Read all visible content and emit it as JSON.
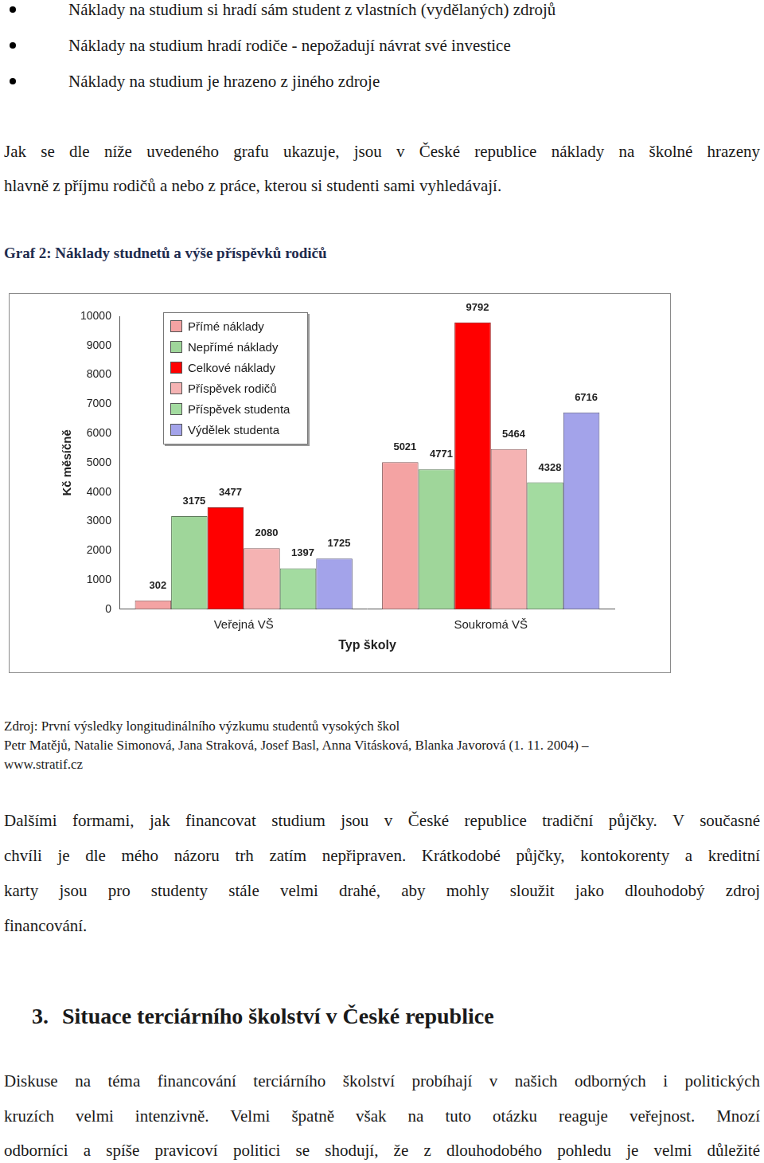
{
  "page": {
    "bullets": [
      "Náklady na studium si hradí sám student z vlastních (vydělaných) zdrojů",
      "Náklady na studium hradí rodiče - nepožadují návrat své investice",
      "Náklady na studium je hrazeno z jiného zdroje"
    ],
    "intro": [
      "Jak se dle níže uvedeného grafu ukazuje, jsou v České republice náklady na školné hrazeny",
      "hlavně z příjmu rodičů a  nebo z práce, kterou si studenti sami vyhledávají."
    ],
    "figure_caption": "Graf 2: Náklady studnetů a výše příspěvků rodičů",
    "source": [
      "Zdroj: První výsledky longitudinálního výzkumu studentů vysokých škol",
      "Petr Matějů, Natalie Simonová, Jana Straková, Josef Basl, Anna Vitásková, Blanka Javorová (1. 11. 2004) –",
      "www.stratif.cz"
    ],
    "paragraph_loans": [
      "Dalšími formami, jak financovat studium jsou v České republice tradiční půjčky. V současné",
      "chvíli je dle mého názoru trh zatím nepřipraven. Krátkodobé půjčky, kontokorenty a kreditní",
      "karty jsou pro studenty stále velmi drahé, aby mohly sloužit jako dlouhodobý zdroj",
      "financování."
    ],
    "section_number": "3.",
    "section_title": "Situace terciárního školství v České republice",
    "paragraph_discussion": [
      "Diskuse na téma financování terciárního školství probíhají v našich odborných i politických",
      "kruzích velmi intenzivně. Velmi špatně však na tuto otázku reaguje veřejnost. Mnozí",
      "odborníci a spíše pravicoví politici se shodují, že z dlouhodobého pohledu je velmi důležité"
    ]
  },
  "chart_data": {
    "type": "bar",
    "x_label": "Typ školy",
    "y_label": "Kč měsíčně",
    "categories": [
      "Veřejná VŠ",
      "Soukromá VŠ"
    ],
    "series": [
      {
        "name": "Přímé náklady",
        "color": "#f4a3a3",
        "values": [
          302,
          5021
        ]
      },
      {
        "name": "Nepřímé náklady",
        "color": "#9fd69a",
        "values": [
          3175,
          4771
        ]
      },
      {
        "name": "Celkové náklady",
        "color": "#ff0000",
        "values": [
          3477,
          9792
        ]
      },
      {
        "name": "Příspěvek rodičů",
        "color": "#f5b3b3",
        "values": [
          2080,
          5464
        ]
      },
      {
        "name": "Příspěvek studenta",
        "color": "#a3dba0",
        "values": [
          1397,
          4328
        ]
      },
      {
        "name": "Výdělek studenta",
        "color": "#a3a3ea",
        "values": [
          1725,
          6716
        ]
      }
    ],
    "ylim": [
      0,
      10000
    ],
    "yticks": [
      0,
      1000,
      2000,
      3000,
      4000,
      5000,
      6000,
      7000,
      8000,
      9000,
      10000
    ],
    "grid": false,
    "legend": "top-left",
    "data_labels": true
  }
}
